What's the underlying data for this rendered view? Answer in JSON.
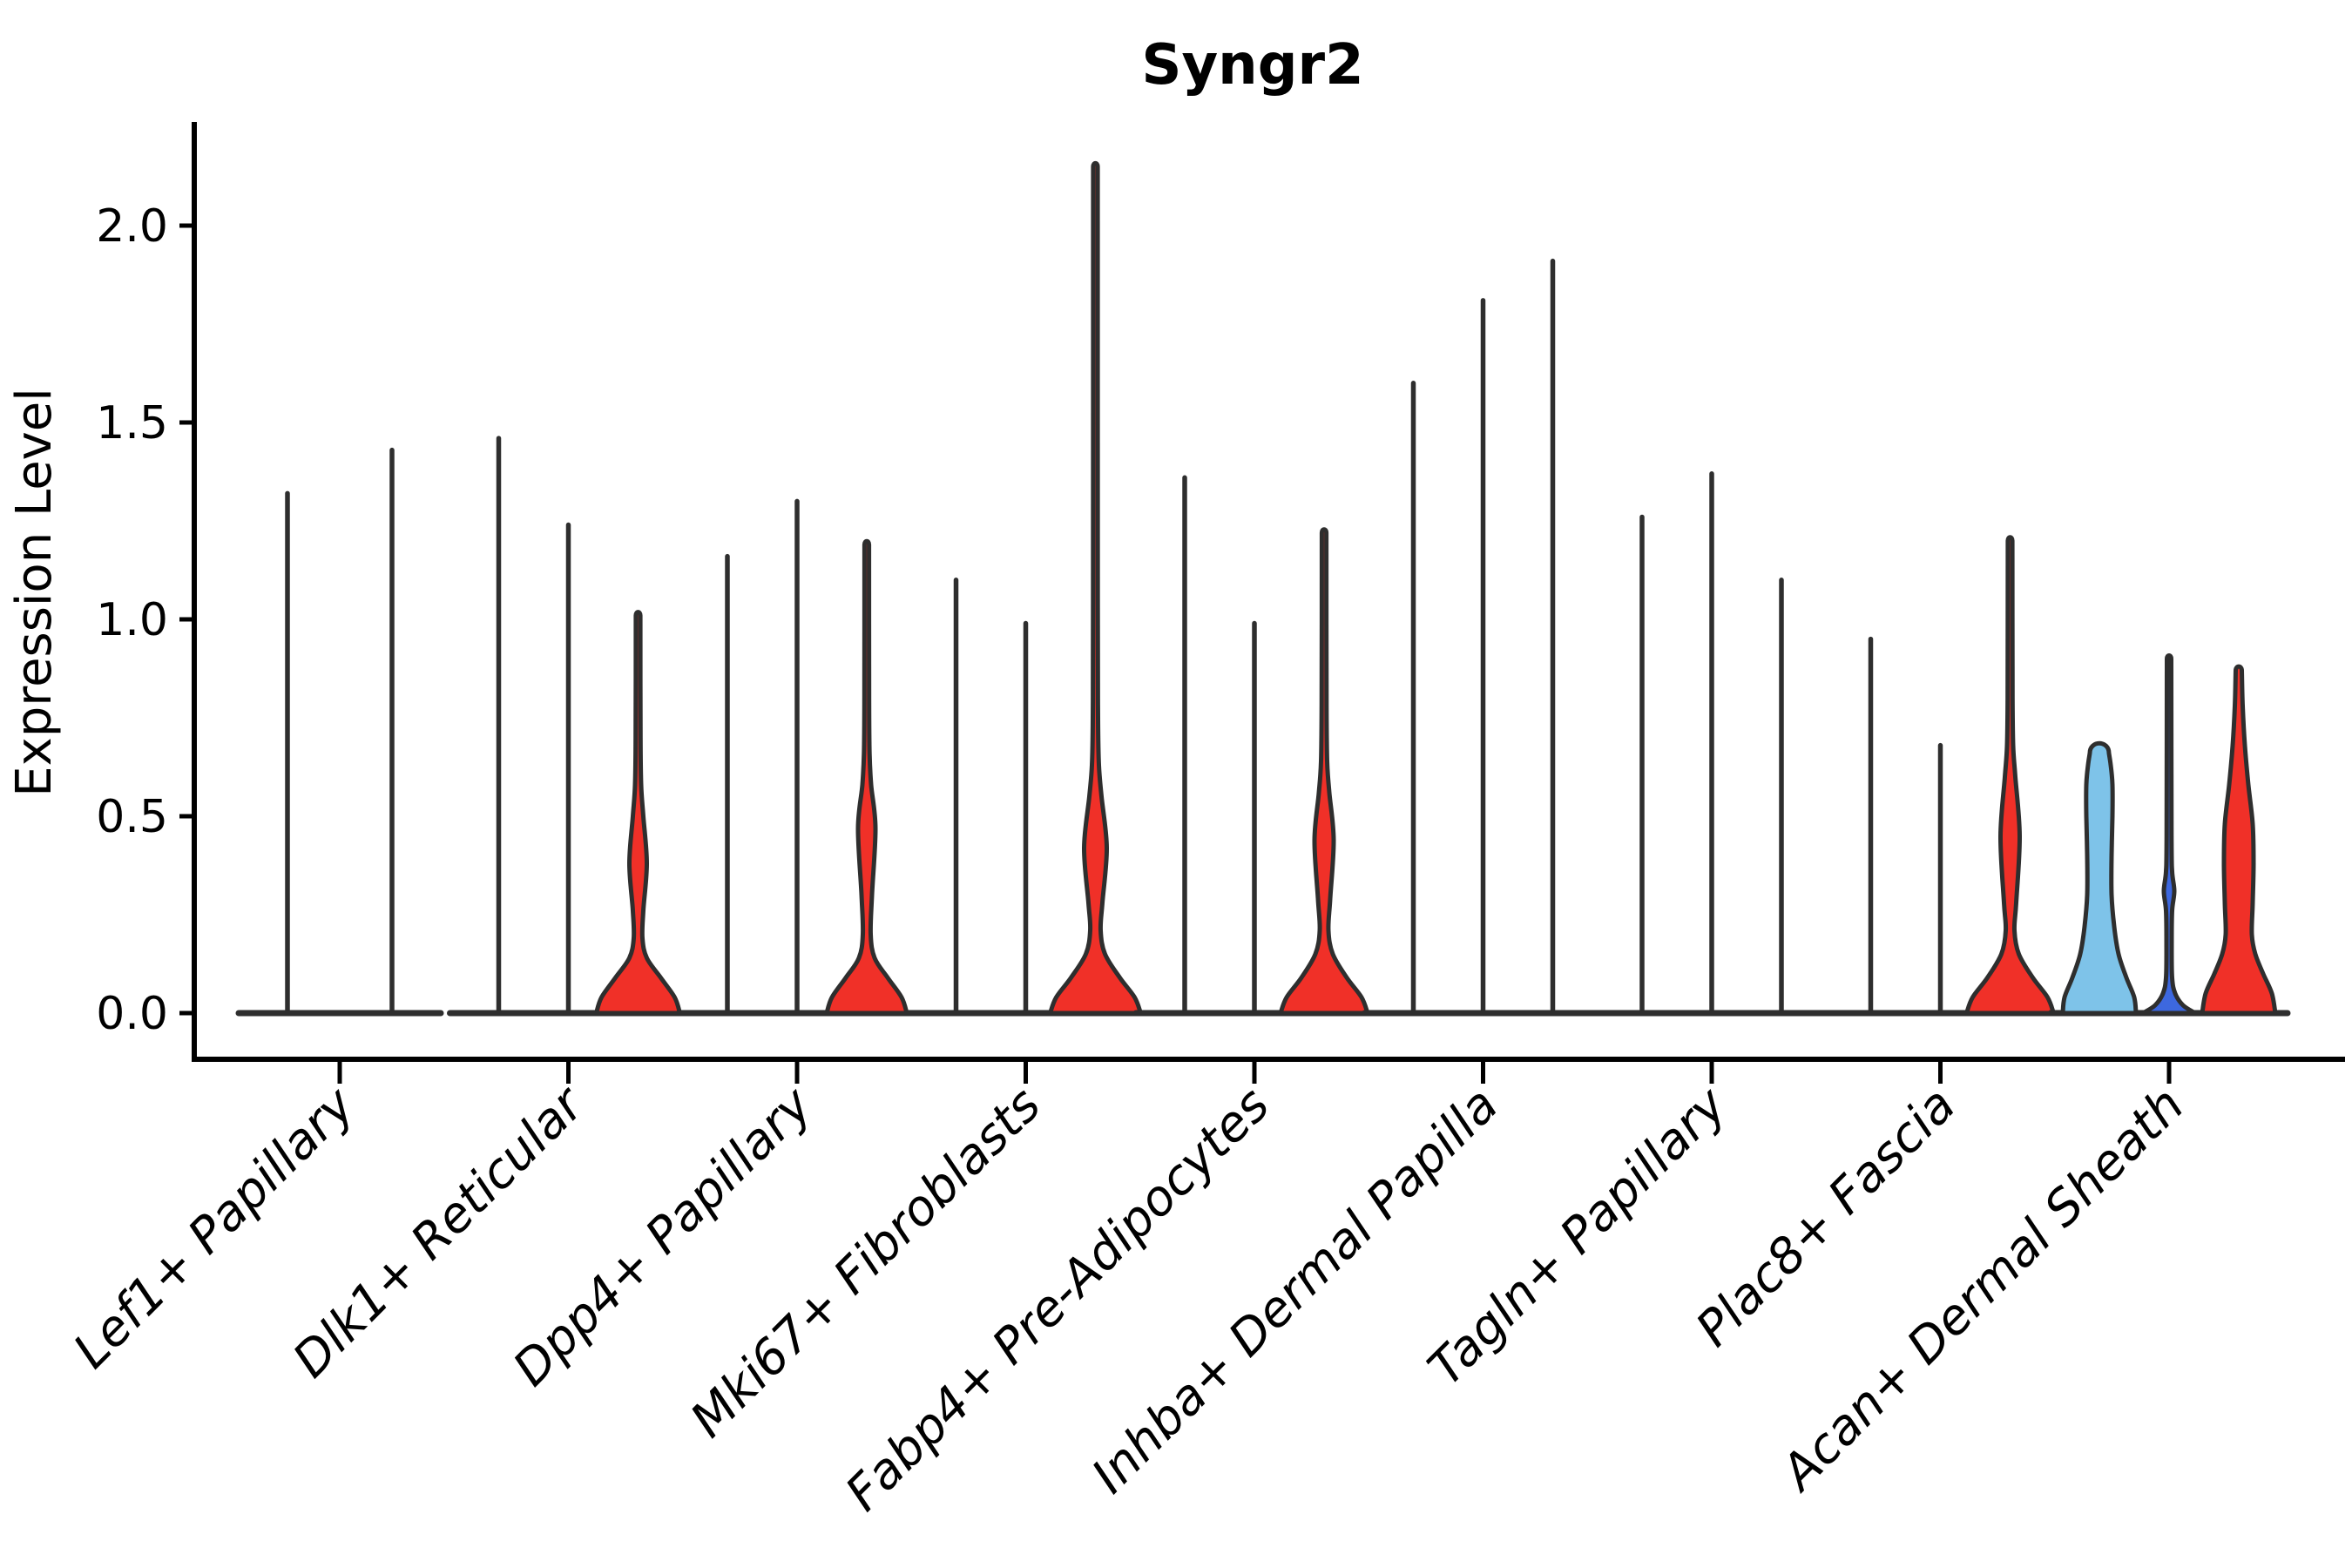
{
  "colors": {
    "red": "#F03028",
    "light_blue": "#7EC3E9",
    "dark_blue": "#3D68DF",
    "outline": "#2E2E2E",
    "axis": "#000000",
    "text": "#000000",
    "background": "#ffffff"
  },
  "chart_data": {
    "type": "violin",
    "title": "Syngr2",
    "ylabel": "Expression Level",
    "xlabel": "",
    "ylim": [
      0,
      2.26
    ],
    "yticks": [
      0.0,
      0.5,
      1.0,
      1.5,
      2.0
    ],
    "ytick_labels": [
      "0.0",
      "0.5",
      "1.0",
      "1.5",
      "2.0"
    ],
    "grid": false,
    "legend": "none",
    "categories": [
      "Lef1+ Papillary",
      "Dlk1+ Reticular",
      "Dpp4+ Papillary",
      "Mki67+ Fibroblasts",
      "Fabp4+ Pre-Adipocytes",
      "Inhba+ Dermal Papilla",
      "Tagln+ Papillary",
      "Plac8+ Fascia",
      "Acan+ Dermal Sheath"
    ],
    "groups": [
      {
        "label": "Lef1+ Papillary",
        "violins": [
          {
            "kind": "spike",
            "max": 1.32
          },
          {
            "kind": "spike",
            "max": 1.43
          }
        ]
      },
      {
        "label": "Dlk1+ Reticular",
        "violins": [
          {
            "kind": "spike",
            "max": 1.46
          },
          {
            "kind": "spike",
            "max": 1.24
          },
          {
            "kind": "violin",
            "color": "red",
            "max": 1.01,
            "bulge_peak": 0.38,
            "profile": [
              [
                0,
                48
              ],
              [
                0.04,
                42
              ],
              [
                0.09,
                26
              ],
              [
                0.14,
                10
              ],
              [
                0.19,
                5
              ],
              [
                0.26,
                6
              ],
              [
                0.38,
                10
              ],
              [
                0.5,
                6
              ],
              [
                0.58,
                3.5
              ],
              [
                0.7,
                2.8
              ],
              [
                1.01,
                2.6
              ]
            ]
          }
        ]
      },
      {
        "label": "Dpp4+ Papillary",
        "violins": [
          {
            "kind": "spike",
            "max": 1.16
          },
          {
            "kind": "spike",
            "max": 1.3
          },
          {
            "kind": "violin",
            "color": "red",
            "max": 1.19,
            "bulge_peak": 0.47,
            "profile": [
              [
                0,
                46
              ],
              [
                0.04,
                40
              ],
              [
                0.09,
                24
              ],
              [
                0.14,
                9
              ],
              [
                0.2,
                4.5
              ],
              [
                0.3,
                6
              ],
              [
                0.47,
                10
              ],
              [
                0.58,
                5
              ],
              [
                0.66,
                3.2
              ],
              [
                0.8,
                2.7
              ],
              [
                1.19,
                2.6
              ]
            ]
          }
        ]
      },
      {
        "label": "Mki67+ Fibroblasts",
        "violins": [
          {
            "kind": "spike",
            "max": 1.1
          },
          {
            "kind": "spike",
            "max": 0.99
          },
          {
            "kind": "violin",
            "color": "red",
            "max": 2.15,
            "bulge_peak": 0.42,
            "profile": [
              [
                0,
                52
              ],
              [
                0.04,
                45
              ],
              [
                0.09,
                28
              ],
              [
                0.15,
                11
              ],
              [
                0.21,
                6
              ],
              [
                0.28,
                8
              ],
              [
                0.42,
                13
              ],
              [
                0.55,
                7
              ],
              [
                0.63,
                4
              ],
              [
                0.75,
                3
              ],
              [
                1.05,
                2.7
              ],
              [
                2.15,
                2.6
              ]
            ]
          }
        ]
      },
      {
        "label": "Fabp4+ Pre-Adipocytes",
        "violins": [
          {
            "kind": "spike",
            "max": 1.36
          },
          {
            "kind": "spike",
            "max": 0.99
          },
          {
            "kind": "violin",
            "color": "red",
            "max": 1.22,
            "bulge_peak": 0.44,
            "profile": [
              [
                0,
                50
              ],
              [
                0.04,
                43
              ],
              [
                0.09,
                26
              ],
              [
                0.15,
                10
              ],
              [
                0.21,
                5
              ],
              [
                0.29,
                7
              ],
              [
                0.44,
                11
              ],
              [
                0.56,
                6
              ],
              [
                0.64,
                3.5
              ],
              [
                0.78,
                2.8
              ],
              [
                1.22,
                2.6
              ]
            ]
          }
        ]
      },
      {
        "label": "Inhba+ Dermal Papilla",
        "violins": [
          {
            "kind": "spike",
            "max": 1.6
          },
          {
            "kind": "spike",
            "max": 1.81
          },
          {
            "kind": "spike",
            "max": 1.91
          }
        ]
      },
      {
        "label": "Tagln+ Papillary",
        "violins": [
          {
            "kind": "spike",
            "max": 1.26
          },
          {
            "kind": "spike",
            "max": 1.37
          },
          {
            "kind": "spike",
            "max": 1.1
          }
        ]
      },
      {
        "label": "Plac8+ Fascia",
        "violins": [
          {
            "kind": "spike",
            "max": 0.95
          },
          {
            "kind": "spike",
            "max": 0.68
          },
          {
            "kind": "violin",
            "color": "red",
            "max": 1.2,
            "bulge_peak": 0.45,
            "profile": [
              [
                0,
                50
              ],
              [
                0.04,
                43
              ],
              [
                0.09,
                26
              ],
              [
                0.15,
                10
              ],
              [
                0.21,
                5
              ],
              [
                0.28,
                7
              ],
              [
                0.45,
                11
              ],
              [
                0.6,
                6
              ],
              [
                0.68,
                3.5
              ],
              [
                0.8,
                2.8
              ],
              [
                1.2,
                2.6
              ]
            ]
          }
        ]
      },
      {
        "label": "Acan+ Dermal Sheath",
        "violins": [
          {
            "kind": "violin",
            "color": "light_blue",
            "max": 0.66,
            "bulge_peak": 0.0,
            "profile": [
              [
                0,
                42
              ],
              [
                0.04,
                40
              ],
              [
                0.09,
                31
              ],
              [
                0.15,
                22
              ],
              [
                0.22,
                17
              ],
              [
                0.3,
                14
              ],
              [
                0.4,
                14
              ],
              [
                0.5,
                15
              ],
              [
                0.58,
                15
              ],
              [
                0.63,
                13
              ],
              [
                0.66,
                11
              ]
            ]
          },
          {
            "kind": "violin",
            "color": "dark_blue",
            "max": 0.9,
            "bulge_peak": 0.31,
            "profile": [
              [
                0,
                30
              ],
              [
                0.02,
                16
              ],
              [
                0.05,
                7
              ],
              [
                0.09,
                3.5
              ],
              [
                0.18,
                3
              ],
              [
                0.26,
                3.5
              ],
              [
                0.31,
                6
              ],
              [
                0.36,
                3.5
              ],
              [
                0.45,
                2.8
              ],
              [
                0.9,
                2.5
              ]
            ]
          },
          {
            "kind": "violin",
            "color": "red",
            "max": 0.87,
            "bulge_peak": 0.4,
            "profile": [
              [
                0,
                42
              ],
              [
                0.05,
                38
              ],
              [
                0.1,
                28
              ],
              [
                0.15,
                19
              ],
              [
                0.2,
                15
              ],
              [
                0.28,
                16
              ],
              [
                0.38,
                17
              ],
              [
                0.48,
                16
              ],
              [
                0.58,
                11
              ],
              [
                0.68,
                7
              ],
              [
                0.78,
                4.5
              ],
              [
                0.87,
                3.5
              ]
            ]
          }
        ]
      }
    ]
  }
}
